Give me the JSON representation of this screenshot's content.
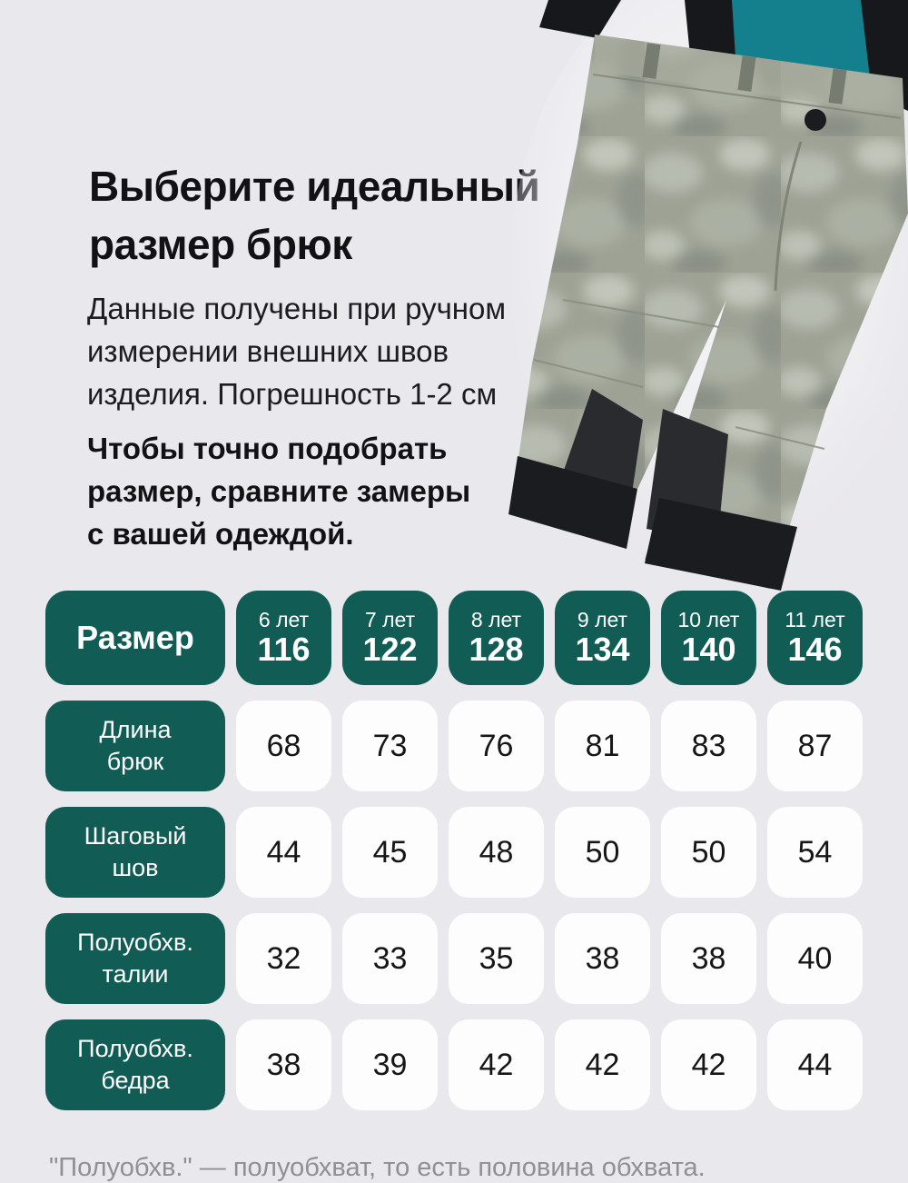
{
  "header": {
    "title": "Выберите идеальный\nразмер брюк",
    "description": "Данные получены при ручном\nизмерении внешних швов\nизделия. Погрешность 1-2 см",
    "advice": "Чтобы точно подобрать\nразмер, сравните замеры\nс вашей одеждой."
  },
  "photo": {
    "alt": "Серые утеплённые брюки с чёрными лямками и бирюзовой спинкой"
  },
  "table": {
    "corner_label": "Размер",
    "columns": [
      {
        "age": "6 лет",
        "size": "116"
      },
      {
        "age": "7 лет",
        "size": "122"
      },
      {
        "age": "8 лет",
        "size": "128"
      },
      {
        "age": "9 лет",
        "size": "134"
      },
      {
        "age": "10 лет",
        "size": "140"
      },
      {
        "age": "11 лет",
        "size": "146"
      }
    ],
    "rows": [
      {
        "label": "Длина\nбрюк",
        "values": [
          "68",
          "73",
          "76",
          "81",
          "83",
          "87"
        ]
      },
      {
        "label": "Шаговый\nшов",
        "values": [
          "44",
          "45",
          "48",
          "50",
          "50",
          "54"
        ]
      },
      {
        "label": "Полуобхв.\nталии",
        "values": [
          "32",
          "33",
          "35",
          "38",
          "38",
          "40"
        ]
      },
      {
        "label": "Полуобхв.\nбедра",
        "values": [
          "38",
          "39",
          "42",
          "42",
          "42",
          "44"
        ]
      }
    ]
  },
  "footnote": "\"Полуобхв.\" — полуобхват, то есть половина обхвата.",
  "colors": {
    "page_background": "#e9e8ec",
    "table_teal": "#115c55",
    "cell_white": "#fdfdfd",
    "text_black": "#151515",
    "footnote_gray": "#8f8f94",
    "pants_gray": "#9da295",
    "pants_marble_light": "#c2c6ba",
    "bib_teal": "#15808d",
    "strap_black": "#17181b",
    "cuff_black": "#1b1c1f"
  }
}
